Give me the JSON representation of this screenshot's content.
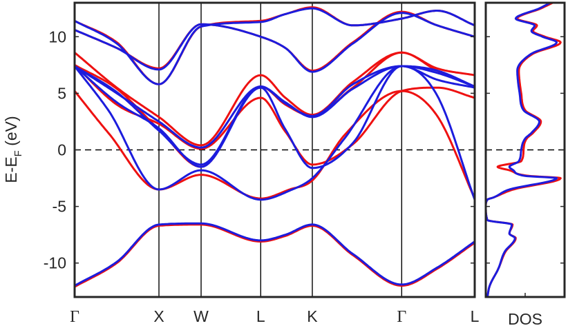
{
  "chart_data": [
    {
      "type": "line",
      "title": "",
      "ylabel_main": "E-E",
      "ylabel_sub": "F",
      "ylabel_unit": " (eV)",
      "ylim": [
        -13,
        13
      ],
      "yticks": [
        -10,
        -5,
        0,
        5,
        10
      ],
      "ytick_labels": [
        "-10",
        "-5",
        "0",
        "5",
        "10"
      ],
      "fermi_level": 0,
      "kpoints": [
        {
          "label": "Γ",
          "k": 0.0
        },
        {
          "label": "X",
          "k": 1.0
        },
        {
          "label": "W",
          "k": 1.5
        },
        {
          "label": "L",
          "k": 2.207
        },
        {
          "label": "K",
          "k": 2.819
        },
        {
          "label": "Γ",
          "k": 3.879
        },
        {
          "label": "L",
          "k": 4.745
        }
      ],
      "colors": {
        "series_a": "#ee1111",
        "series_b": "#1c1cdd",
        "axis": "#262626"
      },
      "series": [
        {
          "key": "a",
          "bands": [
            {
              "x": [
                0,
                0.5,
                1.0,
                1.5,
                2.207,
                2.5,
                2.819,
                3.3,
                3.879,
                4.3,
                4.745
              ],
              "y": [
                -12.1,
                -10.0,
                -6.7,
                -6.6,
                -8.1,
                -7.6,
                -6.7,
                -9.3,
                -12.0,
                -10.5,
                -8.2
              ]
            },
            {
              "x": [
                0,
                0.4,
                1.0,
                1.5,
                2.207,
                2.55,
                2.819,
                3.2,
                3.879,
                4.3,
                4.745
              ],
              "y": [
                5.2,
                1.5,
                -3.5,
                -2.2,
                -4.3,
                -3.5,
                -2.7,
                1.3,
                5.2,
                3.0,
                -4.3
              ]
            },
            {
              "x": [
                0,
                0.5,
                1.0,
                1.5,
                2.207,
                2.5,
                2.819,
                3.3,
                3.879,
                4.3,
                4.745
              ],
              "y": [
                7.5,
                4.0,
                2.3,
                0.1,
                4.6,
                1.6,
                -1.3,
                0.5,
                5.2,
                5.5,
                4.6
              ]
            },
            {
              "x": [
                0,
                0.5,
                1.0,
                1.5,
                2.207,
                2.5,
                2.819,
                3.3,
                3.879,
                4.3,
                4.745
              ],
              "y": [
                8.6,
                5.5,
                2.9,
                0.4,
                6.6,
                4.6,
                3.1,
                6.0,
                8.6,
                7.2,
                6.6
              ]
            },
            {
              "x": [
                0,
                0.5,
                1.0,
                1.5,
                2.207,
                2.5,
                2.819,
                3.3,
                3.879,
                4.3,
                4.745
              ],
              "y": [
                7.5,
                5.4,
                1.8,
                -1.5,
                5.6,
                4.0,
                3.0,
                5.5,
                8.6,
                7.0,
                5.6
              ]
            },
            {
              "x": [
                0,
                0.5,
                1.0,
                1.5,
                2.207,
                2.5,
                2.819,
                3.3,
                3.879,
                4.3,
                4.745
              ],
              "y": [
                10.6,
                9.0,
                7.2,
                11.1,
                10.0,
                9.0,
                7.0,
                9.5,
                12.2,
                11.0,
                10.0
              ]
            },
            {
              "x": [
                0,
                0.5,
                1.0,
                1.5,
                2.207,
                2.5,
                2.819,
                3.3,
                3.879,
                4.3,
                4.745
              ],
              "y": [
                11.4,
                9.5,
                5.8,
                10.9,
                11.4,
                12.0,
                12.6,
                11.0,
                11.6,
                12.3,
                11.0
              ]
            }
          ],
          "dos": {
            "energy": [
              -13,
              -12,
              -10.5,
              -9,
              -7.8,
              -7.4,
              -6.6,
              -6.2,
              -5,
              -4.4,
              -4.2,
              -3.5,
              -2.5,
              -2.3,
              -1.8,
              -1.5,
              -1,
              0,
              1,
              1.5,
              2.5,
              3.5,
              5,
              6,
              7,
              8.5,
              9.5,
              10,
              10.5,
              11,
              11.6,
              12.5,
              13
            ],
            "value": [
              0.02,
              0.05,
              0.16,
              0.25,
              0.38,
              0.3,
              0.34,
              0.02,
              0.0,
              0.02,
              0.1,
              0.35,
              0.95,
              0.55,
              0.3,
              0.15,
              0.45,
              0.48,
              0.52,
              0.6,
              0.7,
              0.5,
              0.45,
              0.43,
              0.42,
              0.6,
              0.95,
              0.75,
              0.6,
              0.65,
              0.4,
              0.7,
              0.85
            ]
          }
        },
        {
          "key": "b",
          "bands": [
            {
              "x": [
                0,
                0.5,
                1.0,
                1.5,
                2.207,
                2.5,
                2.819,
                3.3,
                3.879,
                4.3,
                4.745
              ],
              "y": [
                -12.0,
                -9.9,
                -6.6,
                -6.5,
                -8.0,
                -7.5,
                -6.6,
                -9.2,
                -11.9,
                -10.4,
                -8.1
              ]
            },
            {
              "x": [
                0,
                0.4,
                1.0,
                1.5,
                2.207,
                2.55,
                2.819,
                3.2,
                3.879,
                4.3,
                4.745
              ],
              "y": [
                7.4,
                3.5,
                -3.5,
                -1.8,
                -4.4,
                -3.6,
                -2.5,
                1.0,
                7.4,
                4.8,
                -4.4
              ]
            },
            {
              "x": [
                0,
                0.5,
                1.0,
                1.5,
                2.207,
                2.5,
                2.819,
                3.3,
                3.879,
                4.3,
                4.745
              ],
              "y": [
                7.4,
                4.2,
                1.9,
                -1.5,
                5.5,
                1.8,
                -1.6,
                0.6,
                7.4,
                6.2,
                5.5
              ]
            },
            {
              "x": [
                0,
                0.5,
                1.0,
                1.5,
                2.207,
                2.5,
                2.819,
                3.3,
                3.879,
                4.3,
                4.745
              ],
              "y": [
                7.4,
                5.0,
                2.5,
                0.2,
                5.6,
                4.1,
                3.0,
                5.8,
                7.4,
                7.0,
                5.6
              ]
            },
            {
              "x": [
                0,
                0.5,
                1.0,
                1.5,
                2.207,
                2.5,
                2.819,
                3.3,
                3.879,
                4.3,
                4.745
              ],
              "y": [
                7.4,
                5.1,
                1.7,
                -1.3,
                5.6,
                4.2,
                2.9,
                5.4,
                7.4,
                6.8,
                5.6
              ]
            },
            {
              "x": [
                0,
                0.5,
                1.0,
                1.5,
                2.207,
                2.5,
                2.819,
                3.3,
                3.879,
                4.3,
                4.745
              ],
              "y": [
                10.6,
                9.0,
                7.1,
                11.1,
                10.0,
                9.0,
                6.9,
                9.4,
                12.1,
                11.0,
                10.0
              ]
            },
            {
              "x": [
                0,
                0.5,
                1.0,
                1.5,
                2.207,
                2.5,
                2.819,
                3.3,
                3.879,
                4.3,
                4.745
              ],
              "y": [
                11.4,
                9.4,
                5.8,
                10.9,
                11.3,
                12.0,
                12.5,
                11.0,
                11.6,
                12.3,
                11.0
              ]
            }
          ],
          "dos": {
            "energy": [
              -13,
              -12,
              -10.5,
              -9,
              -7.8,
              -7.4,
              -6.6,
              -6.2,
              -5,
              -4.4,
              -4.2,
              -3.5,
              -2.5,
              -2.3,
              -1.8,
              -1.5,
              -1,
              0,
              1,
              1.5,
              2.5,
              3.5,
              5,
              6,
              7,
              8.5,
              9.5,
              10,
              10.5,
              11,
              11.6,
              12.5,
              13
            ],
            "value": [
              0.02,
              0.05,
              0.16,
              0.24,
              0.37,
              0.3,
              0.33,
              0.02,
              0.0,
              0.02,
              0.1,
              0.3,
              0.9,
              0.5,
              0.35,
              0.3,
              0.42,
              0.45,
              0.5,
              0.58,
              0.68,
              0.48,
              0.43,
              0.41,
              0.4,
              0.58,
              0.9,
              0.72,
              0.58,
              0.62,
              0.38,
              0.68,
              0.82
            ]
          }
        }
      ]
    },
    {
      "type": "line",
      "title": "",
      "xlabel": "DOS",
      "ylim": [
        -13,
        13
      ],
      "xlim": [
        0,
        1
      ],
      "fermi_level": 0
    }
  ]
}
